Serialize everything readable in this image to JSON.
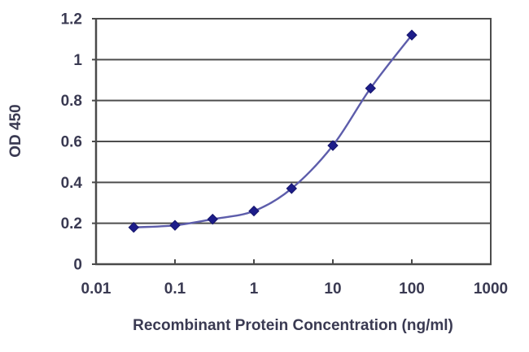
{
  "figure": {
    "xlabel": "Recombinant Protein Concentration (ng/ml)",
    "ylabel": "OD 450"
  },
  "chart_data": {
    "type": "line",
    "title": "",
    "xlabel": "Recombinant Protein Concentration (ng/ml)",
    "ylabel": "OD 450",
    "x_scale": "log",
    "x": [
      0.03,
      0.1,
      0.3,
      1,
      3,
      10,
      30,
      100
    ],
    "y": [
      0.18,
      0.19,
      0.22,
      0.26,
      0.37,
      0.58,
      0.86,
      1.12
    ],
    "xlim": [
      0.01,
      1000
    ],
    "ylim": [
      0,
      1.2
    ],
    "x_ticks": [
      0.01,
      0.1,
      1,
      10,
      100,
      1000
    ],
    "x_tick_labels": [
      "0.01",
      "0.1",
      "1",
      "10",
      "100",
      "1000"
    ],
    "y_ticks": [
      0,
      0.2,
      0.4,
      0.6,
      0.8,
      1,
      1.2
    ],
    "y_tick_labels": [
      "0",
      "0.2",
      "0.4",
      "0.6",
      "0.8",
      "1",
      "1.2"
    ],
    "grid": "horizontal",
    "legend": "none",
    "marker": "diamond",
    "colors": {
      "line": "#5d5dab",
      "marker": "#1d1d8a",
      "marker_edge": "#15156b",
      "grid": "#4d4d4d",
      "axis": "#4a4a4a",
      "text": "#3a3a52",
      "background": "#ffffff"
    }
  }
}
